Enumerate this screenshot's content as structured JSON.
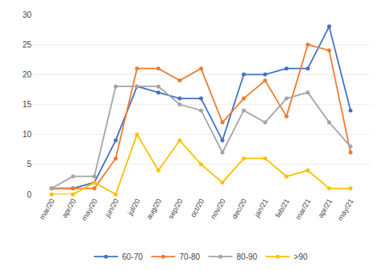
{
  "chart_data": {
    "type": "line",
    "categories": [
      "mar/20",
      "apr/20",
      "may/20",
      "jun/20",
      "jul/20",
      "aug/20",
      "sep/20",
      "oct/20",
      "nov/20",
      "dec/20",
      "jan/21",
      "feb/21",
      "mar/21",
      "apr/21",
      "may/21"
    ],
    "series": [
      {
        "name": "60-70",
        "color": "#4472C4",
        "values": [
          1,
          1,
          2,
          9,
          18,
          17,
          16,
          16,
          9,
          20,
          20,
          21,
          21,
          28,
          14
        ]
      },
      {
        "name": "70-80",
        "color": "#ED7D31",
        "values": [
          1,
          1,
          1,
          6,
          21,
          21,
          19,
          21,
          12,
          16,
          19,
          13,
          25,
          24,
          7
        ]
      },
      {
        "name": "80-90",
        "color": "#A5A5A5",
        "values": [
          1,
          3,
          3,
          18,
          18,
          18,
          15,
          14,
          7,
          14,
          12,
          16,
          17,
          12,
          8
        ]
      },
      {
        "name": ">90",
        "color": "#FFC000",
        "values": [
          0,
          0,
          2,
          0,
          10,
          4,
          9,
          5,
          2,
          6,
          6,
          3,
          4,
          1,
          1
        ]
      }
    ],
    "marker": "circle",
    "ylim": [
      0,
      30
    ],
    "yticks": [
      0,
      5,
      10,
      15,
      20,
      25,
      30
    ],
    "grid": true,
    "legend": "bottom"
  }
}
